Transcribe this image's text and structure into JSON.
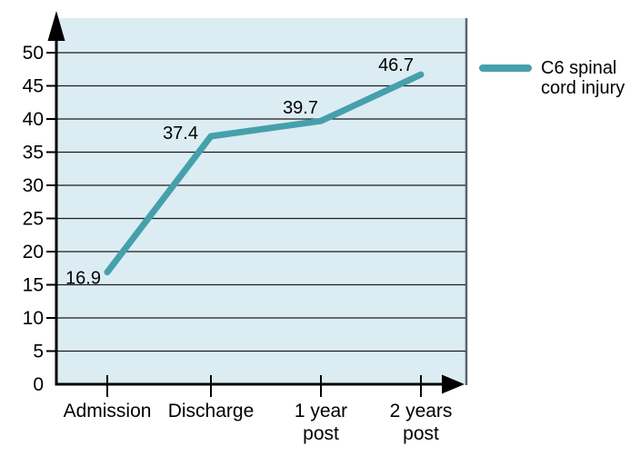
{
  "chart_data": {
    "type": "line",
    "categories": [
      "Admission",
      "Discharge",
      "1 year\npost",
      "2 years\npost"
    ],
    "series": [
      {
        "name": "C6 spinal\ncord injury",
        "values": [
          16.9,
          37.4,
          39.7,
          46.7
        ]
      }
    ],
    "value_labels": [
      "16.9",
      "37.4",
      "39.7",
      "46.7"
    ],
    "y_ticks": [
      0,
      5,
      10,
      15,
      20,
      25,
      30,
      35,
      40,
      45,
      50
    ],
    "ylim": [
      0,
      55
    ],
    "title": "",
    "xlabel": "",
    "ylabel": "",
    "grid": "horizontal",
    "legend_position": "right",
    "colors": {
      "line": "#46a0ac",
      "plot_bg": "#dcecf3",
      "gridline": "#1c1c1c",
      "axis": "#000000",
      "text": "#000000",
      "right_edge": "#55656c"
    }
  },
  "legend": {
    "label": "C6 spinal\ncord injury"
  }
}
